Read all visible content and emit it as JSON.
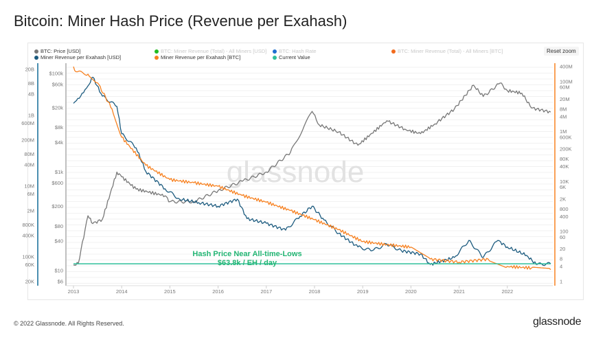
{
  "title": "Bitcoin: Miner Hash Price (Revenue per Exahash)",
  "reset_zoom": "Reset zoom",
  "legend": [
    {
      "label": "BTC: Price [USD]",
      "color": "#777777",
      "active": true
    },
    {
      "label": "BTC: Miner Revenue (Total) - All Miners [USD]",
      "color": "#22bb22",
      "active": false
    },
    {
      "label": "BTC: Hash Rate",
      "color": "#1f6fd0",
      "active": false
    },
    {
      "label": "BTC: Miner Revenue (Total) - All Miners [BTC]",
      "color": "#f26b1d",
      "active": false
    },
    {
      "label": "Miner Revenue per Exahash [USD]",
      "color": "#1b5a7e",
      "active": true
    },
    {
      "label": "Miner Revenue per Exahash [BTC]",
      "color": "#f7801f",
      "active": true
    },
    {
      "label": "Current Value",
      "color": "#2fbf9a",
      "active": true
    }
  ],
  "annotation": {
    "line1": "Hash Price Near All-time-Lows",
    "line2": "$63.8k / EH / day",
    "color": "#22b573"
  },
  "watermark": "glassnode",
  "footer": "© 2022 Glassnode. All Rights Reserved.",
  "logo": "glassnode",
  "chart_data": {
    "type": "line",
    "x_ticks": [
      "2013",
      "2014",
      "2015",
      "2016",
      "2017",
      "2018",
      "2019",
      "2020",
      "2021",
      "2022"
    ],
    "axes": {
      "left_outer": {
        "scale": "log",
        "range": [
          20000,
          20000000000
        ],
        "ticks": [
          "20B",
          "8B",
          "4B",
          "1B",
          "600M",
          "200M",
          "80M",
          "40M",
          "10M",
          "6M",
          "2M",
          "800K",
          "400K",
          "100K",
          "60K",
          "20K"
        ],
        "color": "#4a8fb0"
      },
      "left_price": {
        "scale": "log",
        "range": [
          6,
          100000
        ],
        "ticks": [
          "$100k",
          "$60k",
          "$20k",
          "$8k",
          "$4k",
          "$1k",
          "$600",
          "$200",
          "$80",
          "$40",
          "$10",
          "$6"
        ],
        "color": "#aaaaaa"
      },
      "right": {
        "scale": "log",
        "range": [
          1,
          400000000
        ],
        "ticks": [
          "400M",
          "100M",
          "60M",
          "20M",
          "8M",
          "4M",
          "1M",
          "600K",
          "200K",
          "80K",
          "40K",
          "10K",
          "6K",
          "2K",
          "800",
          "400",
          "100",
          "60",
          "20",
          "8",
          "4",
          "1"
        ],
        "color": "#f7801f"
      }
    },
    "grid": true,
    "series": [
      {
        "name": "BTC: Price [USD]",
        "axis": "left_price",
        "color": "#777777",
        "x": [
          2013.0,
          2013.1,
          2013.3,
          2013.4,
          2013.6,
          2013.9,
          2014.0,
          2014.3,
          2014.9,
          2015.0,
          2015.5,
          2016.0,
          2016.5,
          2017.0,
          2017.5,
          2017.95,
          2018.1,
          2018.5,
          2018.9,
          2019.5,
          2019.9,
          2020.2,
          2020.5,
          2020.9,
          2021.3,
          2021.5,
          2021.85,
          2022.0,
          2022.3,
          2022.5,
          2022.9
        ],
        "y": [
          13,
          14,
          130,
          90,
          110,
          1000,
          800,
          450,
          330,
          250,
          250,
          420,
          650,
          1000,
          2500,
          17000,
          9000,
          6500,
          3500,
          11000,
          7200,
          6000,
          9500,
          19000,
          58000,
          34000,
          64000,
          45000,
          40000,
          20000,
          16500
        ]
      },
      {
        "name": "Miner Revenue per Exahash [USD]",
        "axis": "left_outer",
        "color": "#1b5a7e",
        "x": [
          2013.0,
          2013.15,
          2013.3,
          2013.4,
          2013.6,
          2013.9,
          2014.0,
          2014.3,
          2014.5,
          2014.9,
          2015.2,
          2015.6,
          2016.0,
          2016.4,
          2016.6,
          2017.0,
          2017.4,
          2017.7,
          2017.95,
          2018.2,
          2018.5,
          2018.9,
          2019.2,
          2019.5,
          2019.8,
          2020.2,
          2020.4,
          2020.9,
          2021.2,
          2021.5,
          2021.8,
          2022.0,
          2022.4,
          2022.6,
          2022.9
        ],
        "y": [
          2200000000,
          3500000000,
          6800000000,
          12000000000,
          3500000000,
          1800000000,
          300000000,
          120000000,
          26000000,
          8400000,
          4300000,
          3400000,
          2700000,
          4300000,
          1200000,
          890000,
          570000,
          1400000,
          2700000,
          1100000,
          460000,
          190000,
          150000,
          230000,
          150000,
          120000,
          61000,
          96000,
          290000,
          96000,
          290000,
          190000,
          110000,
          61000,
          63800
        ]
      },
      {
        "name": "Miner Revenue per Exahash [BTC]",
        "axis": "right",
        "color": "#f7801f",
        "x": [
          2013.0,
          2013.05,
          2013.3,
          2013.5,
          2013.8,
          2014.0,
          2014.5,
          2015.0,
          2015.5,
          2016.0,
          2016.5,
          2017.0,
          2017.5,
          2018.0,
          2018.5,
          2019.0,
          2019.5,
          2020.0,
          2020.4,
          2021.0,
          2021.6,
          2022.0,
          2022.5,
          2022.9
        ],
        "y": [
          400000000,
          250000000,
          200000000,
          90000000,
          8000000,
          600000,
          45000,
          12000,
          9000,
          6500,
          2800,
          1500,
          700,
          300,
          120,
          40,
          30,
          24,
          8,
          6,
          8,
          4,
          3.5,
          3
        ]
      },
      {
        "name": "Current Value",
        "axis": "left_outer",
        "color": "#2fbf9a",
        "x": [
          2013.0,
          2022.9
        ],
        "y": [
          63800,
          63800
        ]
      }
    ]
  }
}
